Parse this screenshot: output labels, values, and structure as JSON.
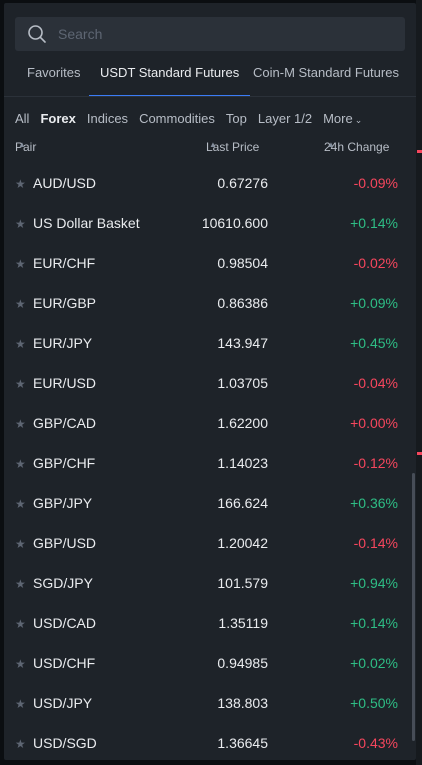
{
  "search": {
    "placeholder": "Search"
  },
  "tabs": [
    {
      "label": "Favorites",
      "active": false
    },
    {
      "label": "USDT Standard Futures",
      "active": true
    },
    {
      "label": "Coin-M Standard Futures",
      "active": false
    }
  ],
  "filters": [
    {
      "label": "All"
    },
    {
      "label": "Forex",
      "active": true
    },
    {
      "label": "Indices"
    },
    {
      "label": "Commodities"
    },
    {
      "label": "Top"
    },
    {
      "label": "Layer 1/2"
    },
    {
      "label": "More"
    }
  ],
  "columns": {
    "pair": "Pair",
    "last_price": "Last Price",
    "change": "24h Change"
  },
  "colors": {
    "up": "#2ebd85",
    "down": "#f6465d",
    "accent": "#3b7cf6"
  },
  "rows": [
    {
      "pair": "AUD/USD",
      "price": "0.67276",
      "change": "-0.09%",
      "dir": "down"
    },
    {
      "pair": "US Dollar Basket",
      "price": "10610.600",
      "change": "+0.14%",
      "dir": "up"
    },
    {
      "pair": "EUR/CHF",
      "price": "0.98504",
      "change": "-0.02%",
      "dir": "down"
    },
    {
      "pair": "EUR/GBP",
      "price": "0.86386",
      "change": "+0.09%",
      "dir": "up"
    },
    {
      "pair": "EUR/JPY",
      "price": "143.947",
      "change": "+0.45%",
      "dir": "up"
    },
    {
      "pair": "EUR/USD",
      "price": "1.03705",
      "change": "-0.04%",
      "dir": "down"
    },
    {
      "pair": "GBP/CAD",
      "price": "1.62200",
      "change": "+0.00%",
      "dir": "down"
    },
    {
      "pair": "GBP/CHF",
      "price": "1.14023",
      "change": "-0.12%",
      "dir": "down"
    },
    {
      "pair": "GBP/JPY",
      "price": "166.624",
      "change": "+0.36%",
      "dir": "up"
    },
    {
      "pair": "GBP/USD",
      "price": "1.20042",
      "change": "-0.14%",
      "dir": "down"
    },
    {
      "pair": "SGD/JPY",
      "price": "101.579",
      "change": "+0.94%",
      "dir": "up"
    },
    {
      "pair": "USD/CAD",
      "price": "1.35119",
      "change": "+0.14%",
      "dir": "up"
    },
    {
      "pair": "USD/CHF",
      "price": "0.94985",
      "change": "+0.02%",
      "dir": "up"
    },
    {
      "pair": "USD/JPY",
      "price": "138.803",
      "change": "+0.50%",
      "dir": "up"
    },
    {
      "pair": "USD/SGD",
      "price": "1.36645",
      "change": "-0.43%",
      "dir": "down"
    }
  ]
}
